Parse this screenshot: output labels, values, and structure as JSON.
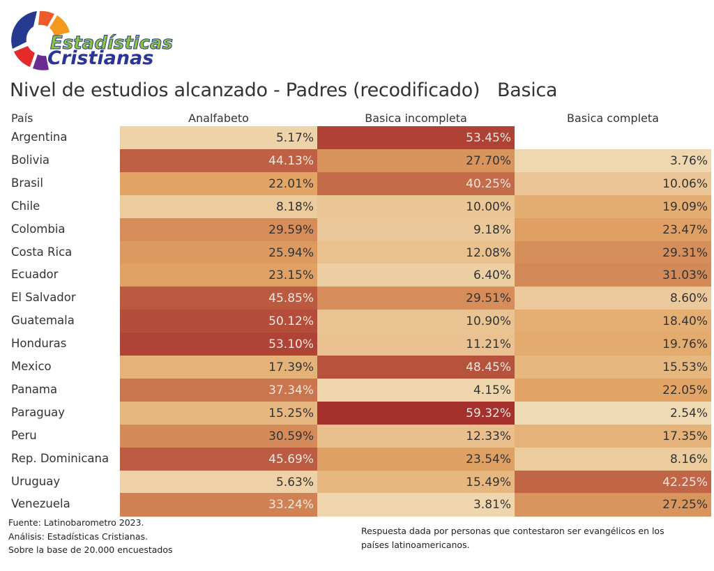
{
  "logo": {
    "line1": "Estadísticas",
    "line2": "Cristianas"
  },
  "chart_data": {
    "type": "heatmap",
    "title": "Nivel de estudios alcanzado - Padres (recodificado)   Basica",
    "row_header": "País",
    "columns": [
      "Analfabeto",
      "Basica incompleta",
      "Basica completa"
    ],
    "rows": [
      "Argentina",
      "Bolivia",
      "Brasil",
      "Chile",
      "Colombia",
      "Costa Rica",
      "Ecuador",
      "El Salvador",
      "Guatemala",
      "Honduras",
      "Mexico",
      "Panama",
      "Paraguay",
      "Peru",
      "Rep. Dominicana",
      "Uruguay",
      "Venezuela"
    ],
    "values": [
      [
        5.17,
        53.45,
        null
      ],
      [
        44.13,
        27.7,
        3.76
      ],
      [
        22.01,
        40.25,
        10.06
      ],
      [
        8.18,
        10.0,
        19.09
      ],
      [
        29.59,
        9.18,
        23.47
      ],
      [
        25.94,
        12.08,
        29.31
      ],
      [
        23.15,
        6.4,
        31.03
      ],
      [
        45.85,
        29.51,
        8.6
      ],
      [
        50.12,
        10.9,
        18.4
      ],
      [
        53.1,
        11.21,
        19.76
      ],
      [
        17.39,
        48.45,
        15.53
      ],
      [
        37.34,
        4.15,
        22.05
      ],
      [
        15.25,
        59.32,
        2.54
      ],
      [
        30.59,
        12.33,
        17.35
      ],
      [
        45.69,
        23.54,
        8.16
      ],
      [
        5.63,
        15.49,
        42.25
      ],
      [
        33.24,
        3.81,
        27.25
      ]
    ],
    "unit": "%",
    "color_scale": [
      "#f0dab4",
      "#e2a566",
      "#a5302c"
    ]
  },
  "footer": {
    "left": [
      "Fuente: Latinobarometro 2023.",
      "Análisis: Estadísticas Cristianas.",
      "Sobre la base de 20.000 encuestados"
    ],
    "right": [
      "Respuesta dada por personas que contestaron ser evangélicos en los",
      "países latinoamericanos."
    ]
  }
}
